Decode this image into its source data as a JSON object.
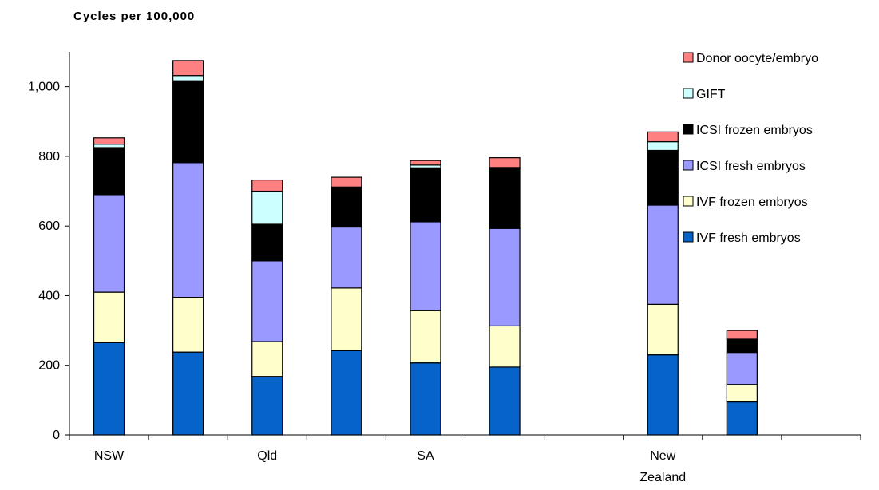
{
  "chart_data": {
    "type": "bar",
    "stacked": true,
    "title": "Cycles per 100,000",
    "xlabel": "",
    "ylabel": "",
    "ylim": [
      0,
      1100
    ],
    "yticks": [
      0,
      200,
      400,
      600,
      800,
      1000
    ],
    "ytick_labels": [
      "0",
      "200",
      "400",
      "600",
      "800",
      "1,000"
    ],
    "grid": false,
    "legend_position": "top-right",
    "slots": [
      "NSW",
      "",
      "Qld",
      "",
      "SA",
      "",
      "",
      "New Zealand",
      "",
      ""
    ],
    "bars_in_slot": [
      0,
      1,
      2,
      3,
      4,
      5,
      7,
      8
    ],
    "series": [
      {
        "name": "IVF fresh embryos",
        "color": "#0563C9",
        "values": [
          265,
          238,
          168,
          242,
          207,
          195,
          230,
          95
        ]
      },
      {
        "name": "IVF frozen embryos",
        "color": "#FFFFCC",
        "values": [
          145,
          157,
          100,
          180,
          150,
          118,
          145,
          50
        ]
      },
      {
        "name": "ICSI fresh embryos",
        "color": "#9999FF",
        "values": [
          280,
          387,
          232,
          175,
          255,
          280,
          285,
          92
        ]
      },
      {
        "name": "ICSI frozen embryos",
        "color": "#000000",
        "values": [
          135,
          235,
          105,
          113,
          155,
          172,
          157,
          38
        ]
      },
      {
        "name": "GIFT",
        "color": "#CCFFFF",
        "values": [
          10,
          15,
          95,
          2,
          8,
          3,
          25,
          0
        ]
      },
      {
        "name": "Donor oocyte/embryo",
        "color": "#FF8080",
        "values": [
          18,
          43,
          32,
          28,
          13,
          28,
          28,
          25
        ]
      }
    ]
  }
}
